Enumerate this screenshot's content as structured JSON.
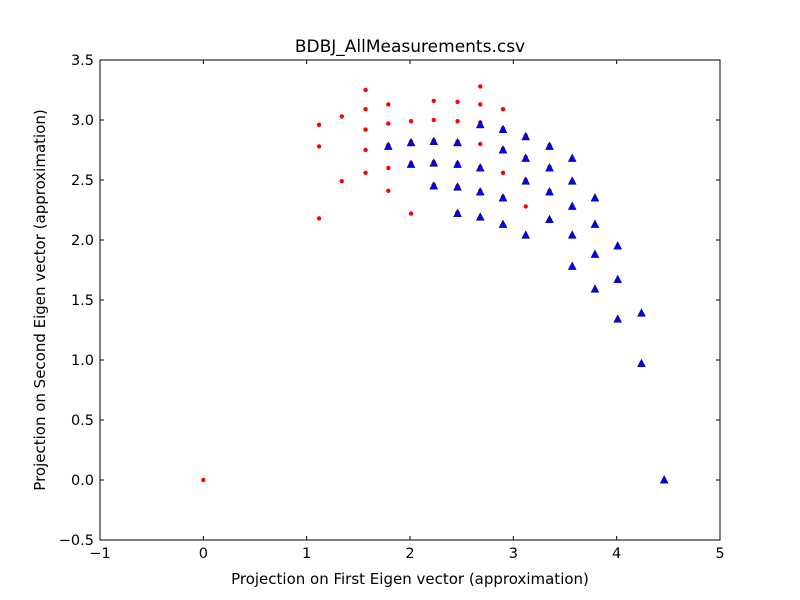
{
  "chart_data": {
    "type": "scatter",
    "title": "BDBJ_AllMeasurements.csv",
    "xlabel": "Projection on First Eigen vector (approximation)",
    "ylabel": "Projection on Second Eigen vector (approximation)",
    "xlim": [
      -1,
      5
    ],
    "ylim": [
      -0.5,
      3.5
    ],
    "xticks": [
      -1,
      0,
      1,
      2,
      3,
      4,
      5
    ],
    "xtick_labels": [
      "−1",
      "0",
      "1",
      "2",
      "3",
      "4",
      "5"
    ],
    "yticks": [
      -0.5,
      0.0,
      0.5,
      1.0,
      1.5,
      2.0,
      2.5,
      3.0,
      3.5
    ],
    "ytick_labels": [
      "−0.5",
      "0.0",
      "0.5",
      "1.0",
      "1.5",
      "2.0",
      "2.5",
      "3.0",
      "3.5"
    ],
    "grid": false,
    "legend": "none",
    "series": [
      {
        "marker": "circle",
        "color": "#ff0000",
        "points": [
          [
            0.0,
            0.0
          ],
          [
            1.12,
            2.96
          ],
          [
            1.12,
            2.78
          ],
          [
            1.12,
            2.18
          ],
          [
            1.34,
            3.03
          ],
          [
            1.34,
            2.49
          ],
          [
            1.57,
            3.25
          ],
          [
            1.57,
            3.09
          ],
          [
            1.57,
            2.92
          ],
          [
            1.57,
            2.75
          ],
          [
            1.57,
            2.56
          ],
          [
            1.79,
            3.13
          ],
          [
            1.79,
            2.97
          ],
          [
            1.79,
            2.79
          ],
          [
            1.79,
            2.6
          ],
          [
            1.79,
            2.41
          ],
          [
            2.01,
            2.99
          ],
          [
            2.01,
            2.82
          ],
          [
            2.01,
            2.64
          ],
          [
            2.01,
            2.22
          ],
          [
            2.23,
            3.16
          ],
          [
            2.23,
            3.0
          ],
          [
            2.23,
            2.83
          ],
          [
            2.23,
            2.65
          ],
          [
            2.23,
            2.46
          ],
          [
            2.46,
            3.15
          ],
          [
            2.46,
            2.99
          ],
          [
            2.46,
            2.82
          ],
          [
            2.46,
            2.64
          ],
          [
            2.46,
            2.45
          ],
          [
            2.46,
            2.23
          ],
          [
            2.68,
            3.28
          ],
          [
            2.68,
            3.13
          ],
          [
            2.68,
            2.98
          ],
          [
            2.68,
            2.8
          ],
          [
            2.68,
            2.61
          ],
          [
            2.68,
            2.41
          ],
          [
            2.9,
            3.09
          ],
          [
            2.9,
            2.93
          ],
          [
            2.9,
            2.76
          ],
          [
            2.9,
            2.56
          ],
          [
            2.9,
            2.36
          ],
          [
            3.12,
            2.87
          ],
          [
            3.12,
            2.69
          ],
          [
            3.12,
            2.5
          ],
          [
            3.12,
            2.28
          ],
          [
            3.35,
            2.79
          ],
          [
            3.35,
            2.61
          ],
          [
            3.35,
            2.41
          ]
        ]
      },
      {
        "marker": "triangle",
        "color": "#0000ff",
        "points": [
          [
            1.79,
            2.78
          ],
          [
            2.01,
            2.81
          ],
          [
            2.01,
            2.63
          ],
          [
            2.23,
            2.82
          ],
          [
            2.23,
            2.64
          ],
          [
            2.23,
            2.45
          ],
          [
            2.46,
            2.81
          ],
          [
            2.46,
            2.63
          ],
          [
            2.46,
            2.44
          ],
          [
            2.46,
            2.22
          ],
          [
            2.68,
            2.96
          ],
          [
            2.68,
            2.6
          ],
          [
            2.68,
            2.4
          ],
          [
            2.68,
            2.19
          ],
          [
            2.9,
            2.92
          ],
          [
            2.9,
            2.75
          ],
          [
            2.9,
            2.35
          ],
          [
            2.9,
            2.13
          ],
          [
            3.12,
            2.86
          ],
          [
            3.12,
            2.68
          ],
          [
            3.12,
            2.49
          ],
          [
            3.12,
            2.04
          ],
          [
            3.35,
            2.78
          ],
          [
            3.35,
            2.6
          ],
          [
            3.35,
            2.4
          ],
          [
            3.35,
            2.17
          ],
          [
            3.57,
            2.68
          ],
          [
            3.57,
            2.49
          ],
          [
            3.57,
            2.28
          ],
          [
            3.57,
            2.04
          ],
          [
            3.57,
            1.78
          ],
          [
            3.79,
            2.35
          ],
          [
            3.79,
            2.13
          ],
          [
            3.79,
            1.88
          ],
          [
            3.79,
            1.59
          ],
          [
            4.01,
            1.95
          ],
          [
            4.01,
            1.67
          ],
          [
            4.01,
            1.34
          ],
          [
            4.24,
            1.39
          ],
          [
            4.24,
            0.97
          ],
          [
            4.46,
            0.0
          ]
        ]
      }
    ]
  }
}
